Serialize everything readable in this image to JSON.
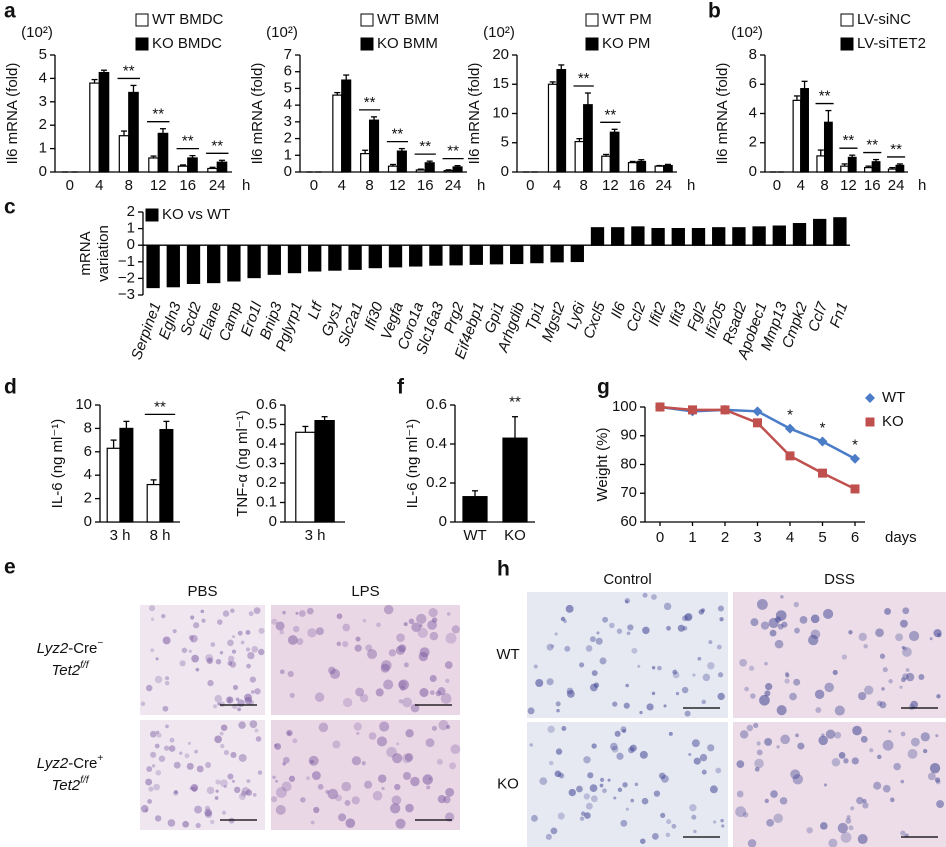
{
  "chart_data": [
    {
      "type": "bar",
      "panel": "a",
      "multiplier": "(10²)",
      "ylabel": "Il6 mRNA (fold)",
      "x_unit": "h",
      "categories": [
        "0",
        "4",
        "8",
        "12",
        "16",
        "24"
      ],
      "ylim": [
        0,
        5
      ],
      "yticks": [
        0,
        1,
        2,
        3,
        4,
        5
      ],
      "series": [
        {
          "name": "WT BMDC",
          "color": "#ffffff",
          "values": [
            0,
            3.8,
            1.55,
            0.6,
            0.25,
            0.15
          ],
          "errors": [
            0,
            0.15,
            0.2,
            0.08,
            0.05,
            0.05
          ]
        },
        {
          "name": "KO BMDC",
          "color": "#000000",
          "values": [
            0,
            4.25,
            3.4,
            1.65,
            0.6,
            0.42
          ],
          "errors": [
            0,
            0.1,
            0.3,
            0.2,
            0.1,
            0.08
          ]
        }
      ],
      "significance": [
        null,
        null,
        "**",
        "**",
        "**",
        "**"
      ]
    },
    {
      "type": "bar",
      "multiplier": "(10²)",
      "ylabel": "Il6 mRNA (fold)",
      "x_unit": "h",
      "categories": [
        "0",
        "4",
        "8",
        "12",
        "16",
        "24"
      ],
      "ylim": [
        0,
        7
      ],
      "yticks": [
        0,
        1,
        2,
        3,
        4,
        5,
        6,
        7
      ],
      "series": [
        {
          "name": "WT BMM",
          "color": "#ffffff",
          "values": [
            0,
            4.6,
            1.1,
            0.35,
            0.12,
            0.08
          ],
          "errors": [
            0,
            0.15,
            0.2,
            0.1,
            0.05,
            0.05
          ]
        },
        {
          "name": "KO BMM",
          "color": "#000000",
          "values": [
            0,
            5.5,
            3.1,
            1.25,
            0.55,
            0.3
          ],
          "errors": [
            0,
            0.3,
            0.2,
            0.15,
            0.1,
            0.08
          ]
        }
      ],
      "significance": [
        null,
        null,
        "**",
        "**",
        "**",
        "**"
      ]
    },
    {
      "type": "bar",
      "multiplier": "(10²)",
      "ylabel": "Il6 mRNA (fold)",
      "x_unit": "h",
      "categories": [
        "0",
        "4",
        "8",
        "12",
        "16",
        "24"
      ],
      "ylim": [
        0,
        20
      ],
      "yticks": [
        0,
        5,
        10,
        15,
        20
      ],
      "series": [
        {
          "name": "WT PM",
          "color": "#ffffff",
          "values": [
            0,
            15,
            5.2,
            2.7,
            1.6,
            1.0
          ],
          "errors": [
            0,
            0.4,
            0.5,
            0.3,
            0.2,
            0.1
          ]
        },
        {
          "name": "KO PM",
          "color": "#000000",
          "values": [
            0,
            17.5,
            11.5,
            6.8,
            1.8,
            1.1
          ],
          "errors": [
            0,
            0.8,
            2.0,
            0.5,
            0.3,
            0.2
          ]
        }
      ],
      "significance": [
        null,
        null,
        "**",
        "**",
        null,
        null
      ]
    },
    {
      "type": "bar",
      "panel": "b",
      "multiplier": "(10²)",
      "ylabel": "Il6 mRNA (fold)",
      "x_unit": "h",
      "categories": [
        "0",
        "4",
        "8",
        "12",
        "16",
        "24"
      ],
      "ylim": [
        0,
        8
      ],
      "yticks": [
        0,
        2,
        4,
        6,
        8
      ],
      "series": [
        {
          "name": "LV-siNC",
          "color": "#ffffff",
          "values": [
            0,
            4.9,
            1.1,
            0.4,
            0.3,
            0.2
          ],
          "errors": [
            0,
            0.3,
            0.4,
            0.15,
            0.1,
            0.1
          ]
        },
        {
          "name": "LV-siTET2",
          "color": "#000000",
          "values": [
            0,
            5.7,
            3.4,
            1.0,
            0.7,
            0.45
          ],
          "errors": [
            0,
            0.5,
            0.8,
            0.15,
            0.15,
            0.1
          ]
        }
      ],
      "significance": [
        null,
        null,
        "**",
        "**",
        "**",
        "**"
      ]
    },
    {
      "type": "bar",
      "panel": "c",
      "ylabel_lines": [
        "mRNA",
        "variation"
      ],
      "italic_categories": true,
      "categories": [
        "Serpine1",
        "Egln3",
        "Scd2",
        "Elane",
        "Camp",
        "Ero1l",
        "Bnip3",
        "Pglyrp1",
        "Ltf",
        "Gys1",
        "Slc2a1",
        "Ifi30",
        "Vegfa",
        "Coro1a",
        "Slc16a3",
        "Prg2",
        "Eif4ebp1",
        "Gpi1",
        "Arhgdib",
        "Tpi1",
        "Mgst2",
        "Ly6i",
        "Cxcl5",
        "Il6",
        "Ccl2",
        "Ifit2",
        "Ifit3",
        "Fgl2",
        "Ifi205",
        "Rsad2",
        "Apobec1",
        "Mmp13",
        "Cmpk2",
        "Ccl7",
        "Fn1"
      ],
      "ylim": [
        -3,
        2
      ],
      "yticks": [
        {
          "value": -3,
          "label": "−3"
        },
        {
          "value": -2,
          "label": "−2"
        },
        {
          "value": -1,
          "label": "−1"
        },
        0,
        1,
        2
      ],
      "series": [
        {
          "name": "KO vs WT",
          "color": "#000000",
          "values": [
            -2.55,
            -2.5,
            -2.3,
            -2.25,
            -2.15,
            -1.95,
            -1.75,
            -1.65,
            -1.55,
            -1.5,
            -1.45,
            -1.35,
            -1.3,
            -1.25,
            -1.2,
            -1.18,
            -1.15,
            -1.12,
            -1.1,
            -1.05,
            -1.0,
            -0.98,
            1.05,
            1.05,
            1.1,
            1.0,
            1.0,
            1.0,
            1.05,
            1.05,
            1.1,
            1.15,
            1.3,
            1.55,
            1.65
          ]
        }
      ]
    },
    {
      "type": "bar",
      "panel": "d",
      "ylabel": "IL-6 (ng ml⁻¹)",
      "categories": [
        "3 h",
        "8 h"
      ],
      "ylim": [
        0,
        10
      ],
      "yticks": [
        0,
        2,
        4,
        6,
        8,
        10
      ],
      "series": [
        {
          "color": "#ffffff",
          "values": [
            6.3,
            3.2
          ],
          "errors": [
            0.7,
            0.4
          ]
        },
        {
          "color": "#000000",
          "values": [
            8.0,
            7.9
          ],
          "errors": [
            0.6,
            0.7
          ]
        }
      ],
      "significance": [
        null,
        "**"
      ]
    },
    {
      "type": "bar",
      "ylabel": "TNF-α (ng ml⁻¹)",
      "categories": [
        "3 h"
      ],
      "ylim": [
        0,
        0.6
      ],
      "yticks": [
        0,
        0.1,
        0.2,
        0.3,
        0.4,
        0.5,
        0.6
      ],
      "series": [
        {
          "color": "#ffffff",
          "values": [
            0.46
          ],
          "errors": [
            0.03
          ]
        },
        {
          "color": "#000000",
          "values": [
            0.52
          ],
          "errors": [
            0.02
          ]
        }
      ]
    },
    {
      "type": "bar",
      "panel": "f",
      "ylabel": "IL-6 (ng ml⁻¹)",
      "categories": [
        "WT",
        "KO"
      ],
      "ylim": [
        0,
        0.6
      ],
      "yticks": [
        0,
        0.2,
        0.4,
        0.6
      ],
      "series": [
        {
          "color": "#000000",
          "values": [
            0.13,
            0.43
          ],
          "errors": [
            0.03,
            0.11
          ]
        }
      ],
      "significance": [
        null,
        "**"
      ]
    },
    {
      "type": "line",
      "panel": "g",
      "ylabel": "Weight (%)",
      "x_unit": "days",
      "x": [
        0,
        1,
        2,
        3,
        4,
        5,
        6
      ],
      "xlim": [
        0,
        6
      ],
      "xticks": [
        0,
        1,
        2,
        3,
        4,
        5,
        6
      ],
      "ylim": [
        60,
        100
      ],
      "yticks": [
        60,
        70,
        80,
        90,
        100
      ],
      "series": [
        {
          "name": "WT",
          "color": "#4a7cc7",
          "marker": "diamond",
          "values": [
            100,
            98.5,
            99,
            98.5,
            92.5,
            88,
            82
          ]
        },
        {
          "name": "KO",
          "color": "#c0504d",
          "marker": "square",
          "values": [
            100,
            99,
            99,
            94.5,
            83,
            77,
            71.5
          ]
        }
      ],
      "significance": [
        null,
        null,
        null,
        null,
        "*",
        "*",
        "*"
      ]
    }
  ],
  "histology": [
    {
      "panel": "e",
      "columns": [
        "PBS",
        "LPS"
      ],
      "rows": [
        {
          "line1": "Lyz2",
          "line1_rest": "-Cre",
          "line1_sup": "−",
          "line2": "Tet2",
          "line2_sup": "f/f"
        },
        {
          "line1": "Lyz2",
          "line1_rest": "-Cre",
          "line1_sup": "+",
          "line2": "Tet2",
          "line2_sup": "f/f"
        }
      ]
    },
    {
      "panel": "h",
      "columns": [
        "Control",
        "DSS"
      ],
      "rows": [
        {
          "line1": "WT"
        },
        {
          "line1": "KO"
        }
      ]
    }
  ]
}
